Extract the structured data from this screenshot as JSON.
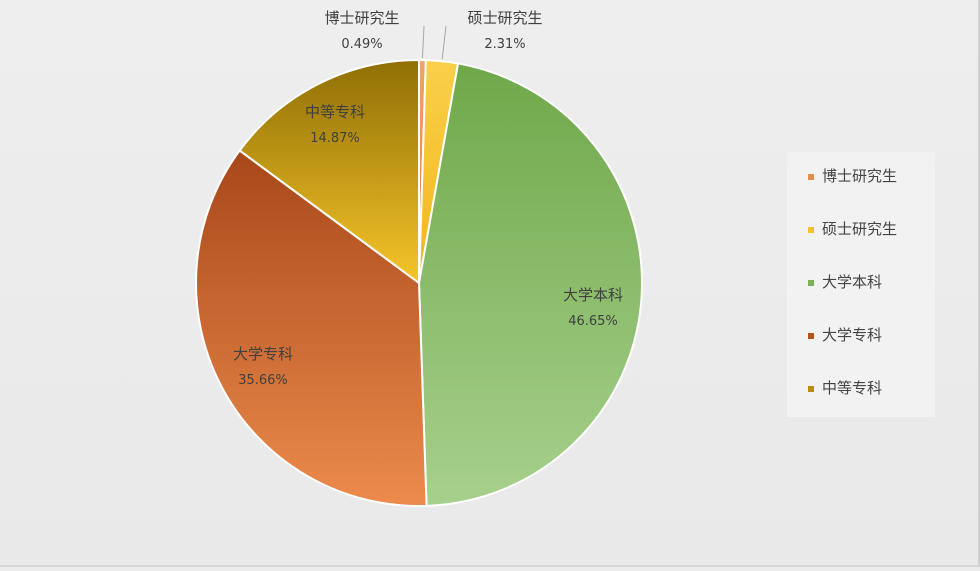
{
  "chart_data": {
    "type": "pie",
    "title": "",
    "categories": [
      "博士研究生",
      "硕士研究生",
      "大学本科",
      "大学专科",
      "中等专科"
    ],
    "values": [
      0.49,
      2.31,
      46.65,
      35.66,
      14.87
    ],
    "value_labels": [
      "0.49%",
      "2.31%",
      "46.65%",
      "35.66%",
      "14.87%"
    ],
    "colors": [
      "#e98b4e",
      "#f6c12c",
      "#7cb257",
      "#b5551b",
      "#b88e06"
    ],
    "start_angle_deg": 0,
    "direction": "clockwise",
    "legend": {
      "position": "right",
      "items": [
        "博士研究生",
        "硕士研究生",
        "大学本科",
        "大学专科",
        "中等专科"
      ]
    }
  }
}
